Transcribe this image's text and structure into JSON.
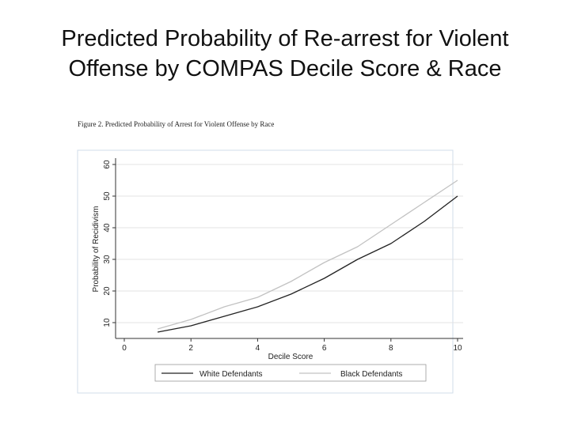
{
  "slide": {
    "title_line1": "Predicted Probability of Re-arrest for Violent",
    "title_line2": "Offense by COMPAS Decile Score & Race"
  },
  "colors": {
    "white_defendants": "#222222",
    "black_defendants": "#c2c2c2",
    "axis": "#333333",
    "grid": "#e3e3e3",
    "frame": "#d0ddea"
  },
  "chart_data": {
    "type": "line",
    "title": "Figure 2.  Predicted Probability of Arrest for Violent Offense by Race",
    "xlabel": "Decile Score",
    "ylabel": "Probability of Recidivism",
    "xlim": [
      0,
      10
    ],
    "ylim": [
      5,
      60
    ],
    "xticks": [
      0,
      2,
      4,
      6,
      8,
      10
    ],
    "yticks": [
      10,
      20,
      30,
      40,
      50,
      60
    ],
    "grid": "horizontal",
    "legend": "bottom",
    "series": [
      {
        "name": "White Defendants",
        "x": [
          1,
          2,
          3,
          4,
          5,
          6,
          7,
          8,
          9,
          10
        ],
        "y": [
          7,
          9,
          12,
          15,
          19,
          24,
          30,
          35,
          42,
          50
        ]
      },
      {
        "name": "Black Defendants",
        "x": [
          1,
          2,
          3,
          4,
          5,
          6,
          7,
          8,
          9,
          10
        ],
        "y": [
          8,
          11,
          15,
          18,
          23,
          29,
          34,
          41,
          48,
          55
        ]
      }
    ]
  }
}
